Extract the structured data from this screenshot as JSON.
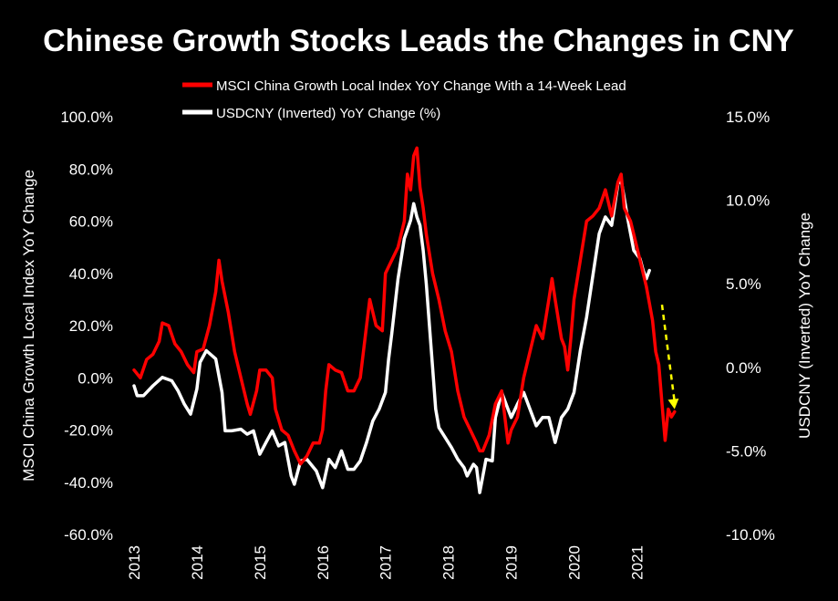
{
  "chart_data": {
    "type": "line",
    "title": "Chinese Growth Stocks Leads the Changes in CNY",
    "y_left_label": "MSCI China Growth Local Index YoY Change",
    "y_right_label": "USDCNY (Inverted) YoY Change",
    "y_left_lim": [
      -60,
      100
    ],
    "y_right_lim": [
      -10,
      15
    ],
    "y_left_ticks": [
      "100.0%",
      "80.0%",
      "60.0%",
      "40.0%",
      "20.0%",
      "0.0%",
      "-20.0%",
      "-40.0%",
      "-60.0%"
    ],
    "y_right_ticks": [
      "15.0%",
      "10.0%",
      "5.0%",
      "0.0%",
      "-5.0%",
      "-10.0%"
    ],
    "x_ticks": [
      "2013",
      "2014",
      "2015",
      "2016",
      "2017",
      "2018",
      "2019",
      "2020",
      "2021"
    ],
    "legend_placement": "top-center",
    "grid": false,
    "annotation": "yellow dashed downward arrow (2021.4 → 2021.6)",
    "colors": {
      "msci": "#ff0000",
      "usdcny": "#ffffff",
      "arrow": "#ffff00"
    },
    "series": [
      {
        "name": "MSCI China Growth Local Index YoY Change With a 14-Week Lead",
        "axis": "left",
        "color": "#ff0000",
        "points": [
          [
            2013.0,
            3
          ],
          [
            2013.1,
            0
          ],
          [
            2013.2,
            7
          ],
          [
            2013.3,
            9
          ],
          [
            2013.4,
            14
          ],
          [
            2013.45,
            21
          ],
          [
            2013.55,
            20
          ],
          [
            2013.65,
            13
          ],
          [
            2013.75,
            10
          ],
          [
            2013.85,
            5
          ],
          [
            2013.95,
            2
          ],
          [
            2014.0,
            10
          ],
          [
            2014.1,
            11
          ],
          [
            2014.2,
            20
          ],
          [
            2014.3,
            33
          ],
          [
            2014.35,
            45
          ],
          [
            2014.4,
            37
          ],
          [
            2014.5,
            25
          ],
          [
            2014.6,
            10
          ],
          [
            2014.7,
            0
          ],
          [
            2014.8,
            -10
          ],
          [
            2014.85,
            -14
          ],
          [
            2014.95,
            -5
          ],
          [
            2015.0,
            3
          ],
          [
            2015.1,
            3
          ],
          [
            2015.2,
            0
          ],
          [
            2015.25,
            -12
          ],
          [
            2015.35,
            -20
          ],
          [
            2015.45,
            -22
          ],
          [
            2015.55,
            -28
          ],
          [
            2015.65,
            -33
          ],
          [
            2015.75,
            -30
          ],
          [
            2015.85,
            -25
          ],
          [
            2015.95,
            -25
          ],
          [
            2016.0,
            -20
          ],
          [
            2016.05,
            -5
          ],
          [
            2016.1,
            5
          ],
          [
            2016.2,
            3
          ],
          [
            2016.3,
            2
          ],
          [
            2016.4,
            -5
          ],
          [
            2016.5,
            -5
          ],
          [
            2016.6,
            0
          ],
          [
            2016.7,
            20
          ],
          [
            2016.75,
            30
          ],
          [
            2016.85,
            20
          ],
          [
            2016.95,
            18
          ],
          [
            2017.0,
            40
          ],
          [
            2017.1,
            45
          ],
          [
            2017.2,
            50
          ],
          [
            2017.3,
            60
          ],
          [
            2017.35,
            78
          ],
          [
            2017.4,
            72
          ],
          [
            2017.45,
            85
          ],
          [
            2017.5,
            88
          ],
          [
            2017.55,
            73
          ],
          [
            2017.6,
            65
          ],
          [
            2017.65,
            55
          ],
          [
            2017.75,
            40
          ],
          [
            2017.85,
            30
          ],
          [
            2017.95,
            18
          ],
          [
            2018.05,
            10
          ],
          [
            2018.15,
            -5
          ],
          [
            2018.25,
            -15
          ],
          [
            2018.35,
            -20
          ],
          [
            2018.45,
            -25
          ],
          [
            2018.5,
            -28
          ],
          [
            2018.55,
            -28
          ],
          [
            2018.65,
            -22
          ],
          [
            2018.75,
            -10
          ],
          [
            2018.85,
            -5
          ],
          [
            2018.95,
            -25
          ],
          [
            2019.0,
            -20
          ],
          [
            2019.1,
            -15
          ],
          [
            2019.2,
            0
          ],
          [
            2019.3,
            10
          ],
          [
            2019.4,
            20
          ],
          [
            2019.5,
            15
          ],
          [
            2019.6,
            30
          ],
          [
            2019.65,
            38
          ],
          [
            2019.7,
            30
          ],
          [
            2019.8,
            15
          ],
          [
            2019.85,
            12
          ],
          [
            2019.9,
            3
          ],
          [
            2019.95,
            15
          ],
          [
            2020.0,
            30
          ],
          [
            2020.1,
            45
          ],
          [
            2020.2,
            60
          ],
          [
            2020.3,
            62
          ],
          [
            2020.4,
            65
          ],
          [
            2020.5,
            72
          ],
          [
            2020.6,
            62
          ],
          [
            2020.7,
            75
          ],
          [
            2020.75,
            78
          ],
          [
            2020.8,
            65
          ],
          [
            2020.9,
            60
          ],
          [
            2020.95,
            55
          ],
          [
            2021.05,
            45
          ],
          [
            2021.15,
            35
          ],
          [
            2021.25,
            22
          ],
          [
            2021.3,
            10
          ],
          [
            2021.35,
            5
          ],
          [
            2021.4,
            -10
          ],
          [
            2021.45,
            -24
          ],
          [
            2021.5,
            -12
          ],
          [
            2021.55,
            -15
          ],
          [
            2021.6,
            -13
          ]
        ]
      },
      {
        "name": "USDCNY (Inverted) YoY Change (%)",
        "axis": "right",
        "color": "#ffffff",
        "points": [
          [
            2013.0,
            -1.1
          ],
          [
            2013.05,
            -1.7
          ],
          [
            2013.15,
            -1.7
          ],
          [
            2013.3,
            -1.1
          ],
          [
            2013.45,
            -0.6
          ],
          [
            2013.6,
            -0.8
          ],
          [
            2013.7,
            -1.4
          ],
          [
            2013.8,
            -2.2
          ],
          [
            2013.9,
            -2.8
          ],
          [
            2014.0,
            -1.3
          ],
          [
            2014.05,
            0.3
          ],
          [
            2014.15,
            1.0
          ],
          [
            2014.3,
            0.5
          ],
          [
            2014.4,
            -1.5
          ],
          [
            2014.45,
            -3.8
          ],
          [
            2014.55,
            -3.8
          ],
          [
            2014.7,
            -3.7
          ],
          [
            2014.8,
            -4.0
          ],
          [
            2014.9,
            -3.8
          ],
          [
            2015.0,
            -5.2
          ],
          [
            2015.1,
            -4.5
          ],
          [
            2015.2,
            -3.8
          ],
          [
            2015.3,
            -4.7
          ],
          [
            2015.4,
            -4.5
          ],
          [
            2015.5,
            -6.5
          ],
          [
            2015.55,
            -7.0
          ],
          [
            2015.65,
            -5.6
          ],
          [
            2015.75,
            -5.5
          ],
          [
            2015.9,
            -6.2
          ],
          [
            2016.0,
            -7.2
          ],
          [
            2016.1,
            -5.5
          ],
          [
            2016.2,
            -6.0
          ],
          [
            2016.3,
            -5.0
          ],
          [
            2016.4,
            -6.1
          ],
          [
            2016.5,
            -6.1
          ],
          [
            2016.6,
            -5.6
          ],
          [
            2016.7,
            -4.5
          ],
          [
            2016.8,
            -3.2
          ],
          [
            2016.9,
            -2.5
          ],
          [
            2017.0,
            -1.5
          ],
          [
            2017.05,
            0.5
          ],
          [
            2017.1,
            2.0
          ],
          [
            2017.2,
            5.3
          ],
          [
            2017.3,
            7.7
          ],
          [
            2017.4,
            8.8
          ],
          [
            2017.45,
            9.8
          ],
          [
            2017.5,
            9.0
          ],
          [
            2017.55,
            8.5
          ],
          [
            2017.6,
            7.0
          ],
          [
            2017.65,
            5.0
          ],
          [
            2017.75,
            0.0
          ],
          [
            2017.8,
            -2.5
          ],
          [
            2017.85,
            -3.6
          ],
          [
            2017.95,
            -4.2
          ],
          [
            2018.05,
            -4.8
          ],
          [
            2018.15,
            -5.5
          ],
          [
            2018.25,
            -6.0
          ],
          [
            2018.3,
            -6.5
          ],
          [
            2018.4,
            -5.8
          ],
          [
            2018.45,
            -6.0
          ],
          [
            2018.5,
            -7.5
          ],
          [
            2018.6,
            -5.5
          ],
          [
            2018.7,
            -5.6
          ],
          [
            2018.75,
            -3.0
          ],
          [
            2018.85,
            -1.5
          ],
          [
            2018.95,
            -2.5
          ],
          [
            2019.0,
            -3.0
          ],
          [
            2019.1,
            -2.2
          ],
          [
            2019.2,
            -1.5
          ],
          [
            2019.3,
            -2.5
          ],
          [
            2019.4,
            -3.5
          ],
          [
            2019.5,
            -3.0
          ],
          [
            2019.6,
            -3.0
          ],
          [
            2019.7,
            -4.5
          ],
          [
            2019.8,
            -3.0
          ],
          [
            2019.9,
            -2.5
          ],
          [
            2020.0,
            -1.5
          ],
          [
            2020.1,
            1.0
          ],
          [
            2020.2,
            3.0
          ],
          [
            2020.3,
            5.5
          ],
          [
            2020.4,
            8.0
          ],
          [
            2020.5,
            9.0
          ],
          [
            2020.6,
            8.5
          ],
          [
            2020.7,
            11.0
          ],
          [
            2020.75,
            11.2
          ],
          [
            2020.85,
            9.0
          ],
          [
            2020.9,
            8.0
          ],
          [
            2020.95,
            7.0
          ],
          [
            2021.05,
            6.5
          ],
          [
            2021.1,
            5.8
          ],
          [
            2021.15,
            5.3
          ],
          [
            2021.2,
            5.8
          ]
        ]
      }
    ]
  }
}
